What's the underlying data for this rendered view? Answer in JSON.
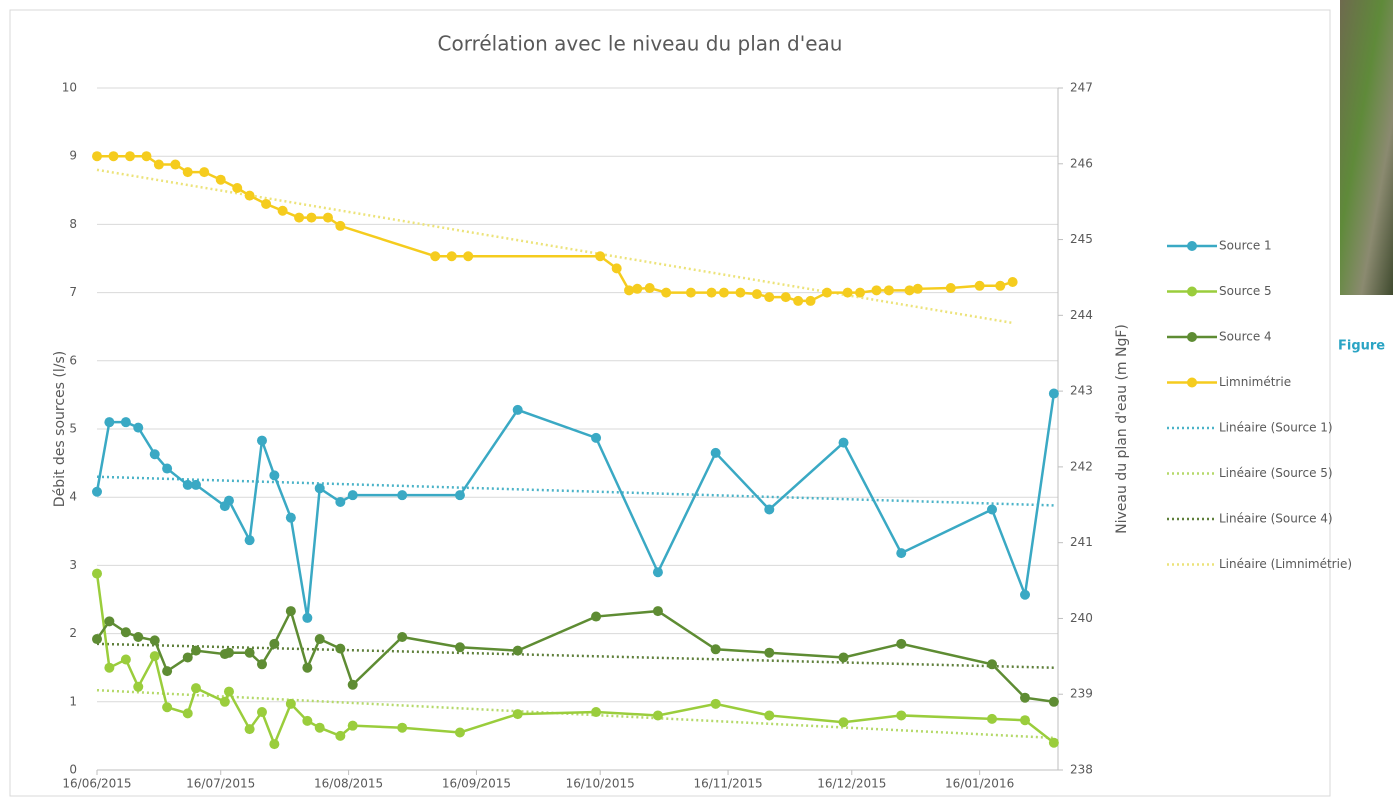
{
  "chart_data": {
    "type": "line",
    "title": "Corrélation avec le niveau du plan d'eau",
    "ylabel": "Débit des sources (l/s)",
    "y2label": "Niveau du plan d'eau (m NgF)",
    "xlim": [
      "2015-06-16",
      "2016-02-04"
    ],
    "xticks": [
      {
        "value": "2015-06-16",
        "label": "16/06/2015"
      },
      {
        "value": "2015-07-16",
        "label": "16/07/2015"
      },
      {
        "value": "2015-08-16",
        "label": "16/08/2015"
      },
      {
        "value": "2015-09-16",
        "label": "16/09/2015"
      },
      {
        "value": "2015-10-16",
        "label": "16/10/2015"
      },
      {
        "value": "2015-11-16",
        "label": "16/11/2015"
      },
      {
        "value": "2015-12-16",
        "label": "16/12/2015"
      },
      {
        "value": "2016-01-16",
        "label": "16/01/2016"
      }
    ],
    "ylim": [
      0,
      10
    ],
    "yticks": [
      0,
      1,
      2,
      3,
      4,
      5,
      6,
      7,
      8,
      9,
      10
    ],
    "y2lim": [
      238,
      247
    ],
    "y2ticks": [
      238,
      239,
      240,
      241,
      242,
      243,
      244,
      245,
      246,
      247
    ],
    "grid": true,
    "legend": "right",
    "series": [
      {
        "name": "Source 1",
        "color": "#3aa9c4",
        "line_style": "solid",
        "markers": true,
        "x": [
          "2015-06-16",
          "2015-06-19",
          "2015-06-23",
          "2015-06-26",
          "2015-06-30",
          "2015-07-03",
          "2015-07-08",
          "2015-07-10",
          "2015-07-17",
          "2015-07-18",
          "2015-07-23",
          "2015-07-26",
          "2015-07-29",
          "2015-08-02",
          "2015-08-06",
          "2015-08-09",
          "2015-08-14",
          "2015-08-17",
          "2015-08-29",
          "2015-09-12",
          "2015-09-26",
          "2015-10-15",
          "2015-10-30",
          "2015-11-13",
          "2015-11-26",
          "2015-12-14",
          "2015-12-28",
          "2016-01-19",
          "2016-01-27",
          "2016-02-03"
        ],
        "values": [
          4.08,
          5.1,
          5.1,
          5.02,
          4.63,
          4.42,
          4.18,
          4.18,
          3.87,
          3.95,
          3.37,
          4.83,
          4.32,
          3.7,
          2.23,
          4.13,
          3.93,
          4.03,
          4.03,
          4.03,
          5.28,
          4.87,
          2.9,
          4.65,
          3.82,
          4.8,
          3.18,
          3.82,
          2.57,
          5.52
        ]
      },
      {
        "name": "Source 5",
        "color": "#9acd3c",
        "line_style": "solid",
        "markers": true,
        "x": [
          "2015-06-16",
          "2015-06-19",
          "2015-06-23",
          "2015-06-26",
          "2015-06-30",
          "2015-07-03",
          "2015-07-08",
          "2015-07-10",
          "2015-07-17",
          "2015-07-18",
          "2015-07-23",
          "2015-07-26",
          "2015-07-29",
          "2015-08-02",
          "2015-08-06",
          "2015-08-09",
          "2015-08-14",
          "2015-08-17",
          "2015-08-29",
          "2015-09-12",
          "2015-09-26",
          "2015-10-15",
          "2015-10-30",
          "2015-11-13",
          "2015-11-26",
          "2015-12-14",
          "2015-12-28",
          "2016-01-19",
          "2016-01-27",
          "2016-02-03"
        ],
        "values": [
          2.88,
          1.5,
          1.62,
          1.22,
          1.67,
          0.92,
          0.83,
          1.2,
          1.0,
          1.15,
          0.6,
          0.85,
          0.38,
          0.97,
          0.72,
          0.62,
          0.5,
          0.65,
          0.62,
          0.55,
          0.82,
          0.85,
          0.8,
          0.97,
          0.8,
          0.7,
          0.8,
          0.75,
          0.73,
          0.4
        ]
      },
      {
        "name": "Source 4",
        "color": "#5e8c33",
        "line_style": "solid",
        "markers": true,
        "x": [
          "2015-06-16",
          "2015-06-19",
          "2015-06-23",
          "2015-06-26",
          "2015-06-30",
          "2015-07-03",
          "2015-07-08",
          "2015-07-10",
          "2015-07-17",
          "2015-07-18",
          "2015-07-23",
          "2015-07-26",
          "2015-07-29",
          "2015-08-02",
          "2015-08-06",
          "2015-08-09",
          "2015-08-14",
          "2015-08-17",
          "2015-08-29",
          "2015-09-12",
          "2015-09-26",
          "2015-10-15",
          "2015-10-30",
          "2015-11-13",
          "2015-11-26",
          "2015-12-14",
          "2015-12-28",
          "2016-01-19",
          "2016-01-27",
          "2016-02-03"
        ],
        "values": [
          1.92,
          2.18,
          2.02,
          1.95,
          1.9,
          1.45,
          1.65,
          1.75,
          1.7,
          1.72,
          1.72,
          1.55,
          1.85,
          2.33,
          1.5,
          1.92,
          1.78,
          1.25,
          1.95,
          1.8,
          1.75,
          2.25,
          2.33,
          1.77,
          1.72,
          1.65,
          1.85,
          1.55,
          1.06,
          1.0
        ]
      },
      {
        "name": "Limnimétrie",
        "color": "#f5cc1e",
        "line_style": "solid",
        "markers": true,
        "axis": "y2",
        "x": [
          "2015-06-16",
          "2015-06-20",
          "2015-06-24",
          "2015-06-28",
          "2015-07-01",
          "2015-07-05",
          "2015-07-08",
          "2015-07-12",
          "2015-07-16",
          "2015-07-20",
          "2015-07-23",
          "2015-07-27",
          "2015-07-31",
          "2015-08-04",
          "2015-08-07",
          "2015-08-11",
          "2015-08-14",
          "2015-09-06",
          "2015-09-10",
          "2015-09-14",
          "2015-10-16",
          "2015-10-20",
          "2015-10-23",
          "2015-10-25",
          "2015-10-28",
          "2015-11-01",
          "2015-11-07",
          "2015-11-12",
          "2015-11-15",
          "2015-11-19",
          "2015-11-23",
          "2015-11-26",
          "2015-11-30",
          "2015-12-03",
          "2015-12-06",
          "2015-12-10",
          "2015-12-15",
          "2015-12-18",
          "2015-12-22",
          "2015-12-25",
          "2015-12-30",
          "2016-01-01",
          "2016-01-09",
          "2016-01-16",
          "2016-01-21",
          "2016-01-24"
        ],
        "values": [
          246.1,
          246.1,
          246.1,
          246.1,
          245.99,
          245.99,
          245.89,
          245.89,
          245.79,
          245.68,
          245.58,
          245.47,
          245.38,
          245.29,
          245.29,
          245.29,
          245.18,
          244.78,
          244.78,
          244.78,
          244.78,
          244.62,
          244.33,
          244.35,
          244.36,
          244.3,
          244.3,
          244.3,
          244.3,
          244.3,
          244.28,
          244.24,
          244.24,
          244.19,
          244.19,
          244.3,
          244.3,
          244.3,
          244.33,
          244.33,
          244.33,
          244.35,
          244.36,
          244.39,
          244.39,
          244.44
        ]
      },
      {
        "name": "Linéaire (Source 1)",
        "color": "#4bb3c8",
        "line_style": "dotted",
        "markers": false,
        "x": [
          "2015-06-16",
          "2016-02-03"
        ],
        "values": [
          4.3,
          3.88
        ]
      },
      {
        "name": "Linéaire (Source 5)",
        "color": "#b5d96a",
        "line_style": "dotted",
        "markers": false,
        "x": [
          "2015-06-16",
          "2016-02-03"
        ],
        "values": [
          1.17,
          0.47
        ]
      },
      {
        "name": "Linéaire (Source 4)",
        "color": "#5e7f3a",
        "line_style": "dotted",
        "markers": false,
        "x": [
          "2015-06-16",
          "2016-02-03"
        ],
        "values": [
          1.85,
          1.5
        ]
      },
      {
        "name": "Linéaire (Limnimétrie)",
        "color": "#ece37a",
        "line_style": "dotted",
        "markers": false,
        "axis": "y2",
        "x": [
          "2015-06-16",
          "2016-01-24"
        ],
        "values": [
          245.92,
          243.9
        ]
      }
    ]
  },
  "side": {
    "caption_fragment": "Figure"
  }
}
